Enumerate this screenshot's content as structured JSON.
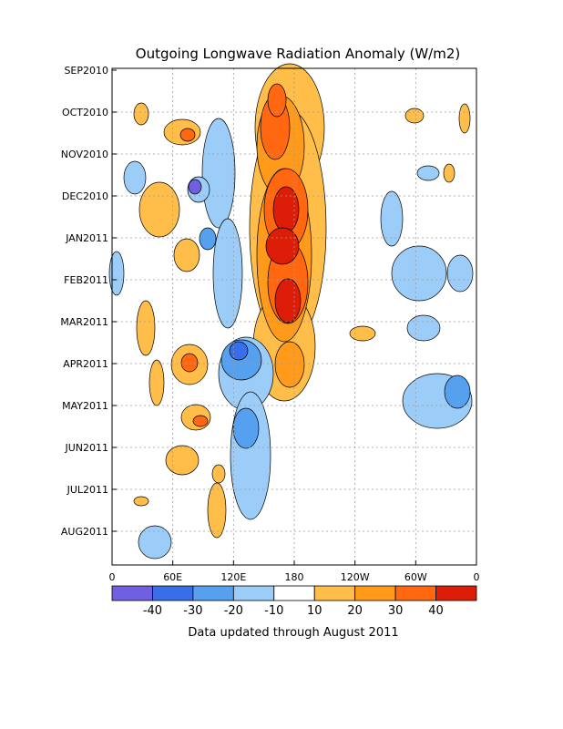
{
  "chart_data": {
    "type": "heatmap",
    "title": "Outgoing Longwave Radiation Anomaly (W/m2)",
    "footer": "Data updated through August 2011",
    "x_ticks": [
      "0",
      "60E",
      "120E",
      "180",
      "120W",
      "60W",
      "0"
    ],
    "x_range": [
      "0",
      "360"
    ],
    "y_ticks": [
      "SEP2010",
      "OCT2010",
      "NOV2010",
      "DEC2010",
      "JAN2011",
      "FEB2011",
      "MAR2011",
      "APR2011",
      "MAY2011",
      "JUN2011",
      "JUL2011",
      "AUG2011"
    ],
    "y_direction": "time increases downward",
    "grid": true,
    "colorbar": {
      "ticks": [
        "-40",
        "-30",
        "-20",
        "-10",
        "10",
        "20",
        "30",
        "40"
      ],
      "colors": [
        "#7060e0",
        "#3a6ee8",
        "#56a0f0",
        "#9ccdf8",
        "#ffffff",
        "#ffbe4a",
        "#ff9a1a",
        "#ff6810",
        "#dc1e08"
      ]
    },
    "anomaly_features": [
      {
        "lon": 180,
        "time": "DEC2010-MAR2011",
        "sign": "positive",
        "max_level": 40
      },
      {
        "lon": 180,
        "time": "SEP2010-NOV2010",
        "sign": "positive",
        "max_level": 30
      },
      {
        "lon": 150,
        "time": "MAR2011-APR2011",
        "sign": "negative",
        "max_level": -30
      },
      {
        "lon": 130,
        "time": "OCT2010-JUL2011",
        "sign": "negative",
        "max_level": -20
      },
      {
        "lon": 90,
        "time": "NOV2010-DEC2010",
        "sign": "negative",
        "max_level": -40
      },
      {
        "lon": 75,
        "time": "OCT2010",
        "sign": "positive",
        "max_level": 30
      },
      {
        "lon": 75,
        "time": "APR2011",
        "sign": "positive",
        "max_level": 30
      },
      {
        "lon": 85,
        "time": "MAY2011",
        "sign": "positive",
        "max_level": 30
      },
      {
        "lon": 40,
        "time": "NOV2010-JAN2011",
        "sign": "positive",
        "max_level": 10
      },
      {
        "lon": 300,
        "time": "DEC2010-MAR2011",
        "sign": "negative",
        "max_level": -20
      },
      {
        "lon": 340,
        "time": "APR2011-MAY2011",
        "sign": "negative",
        "max_level": -30
      }
    ]
  }
}
